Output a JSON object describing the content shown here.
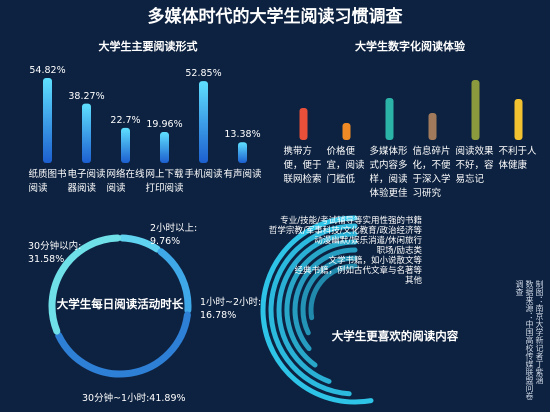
{
  "title": "多媒体时代的大学生阅读习惯调查",
  "credit": [
    "制图：南京大学新记者丁紫涵",
    "数据来源：中国高校传媒联盟问卷调查"
  ],
  "chart_data": [
    {
      "type": "bar",
      "title": "大学生主要阅读形式",
      "categories": [
        "纸质图书阅读",
        "电子阅读器阅读",
        "网络在线阅读",
        "网上下载打印阅读",
        "手机阅读",
        "有声阅读"
      ],
      "values": [
        54.82,
        38.27,
        22.7,
        19.96,
        52.85,
        13.38
      ],
      "value_labels": [
        "54.82%",
        "38.27%",
        "22.7%",
        "19.96%",
        "52.85%",
        "13.38%"
      ],
      "color": "#2a7fe0"
    },
    {
      "type": "bar",
      "title": "大学生数字化阅读体验",
      "categories": [
        "携带方便，便于联网检索",
        "价格便宜，阅读门槛低",
        "多媒体形式内容多样，阅读体验更佳",
        "信息碎片化，不便于深入学习研究",
        "阅读效果不好，容易忘记",
        "不利于人体健康"
      ],
      "values": [
        32,
        17,
        42,
        27,
        60,
        41
      ],
      "colors": [
        "#e8503a",
        "#f08a24",
        "#2ab3a6",
        "#a07a5a",
        "#8a9a3c",
        "#f2c230"
      ]
    },
    {
      "type": "donut",
      "title": "大学生每日阅读活动时长",
      "categories": [
        "2小时以上:",
        "1小时~2小时:",
        "30分钟~1小时:",
        "30分钟以内:"
      ],
      "values": [
        9.76,
        16.78,
        41.89,
        31.58
      ],
      "value_labels": [
        "9.76%",
        "16.78%",
        "41.89%",
        "31.58%"
      ],
      "colors": [
        "#5fd3f0",
        "#3fa8e8",
        "#2e7fd6",
        "#6fe0e8"
      ]
    },
    {
      "type": "radial-bar",
      "title": "大学生更喜欢的阅读内容",
      "categories": [
        "专业/技能/考试辅导等实用性强的书籍",
        "哲学宗教/军事科技/文化教育/政治经济等",
        "动漫幽默/娱乐消遣/休闲旅行",
        "职场/励志类",
        "文学书籍，如小说散文等",
        "经典书籍，例如古代文章与名著等",
        "其他"
      ],
      "values": [
        95,
        88,
        80,
        72,
        65,
        58,
        50
      ],
      "color": "#2ec4e8"
    }
  ]
}
